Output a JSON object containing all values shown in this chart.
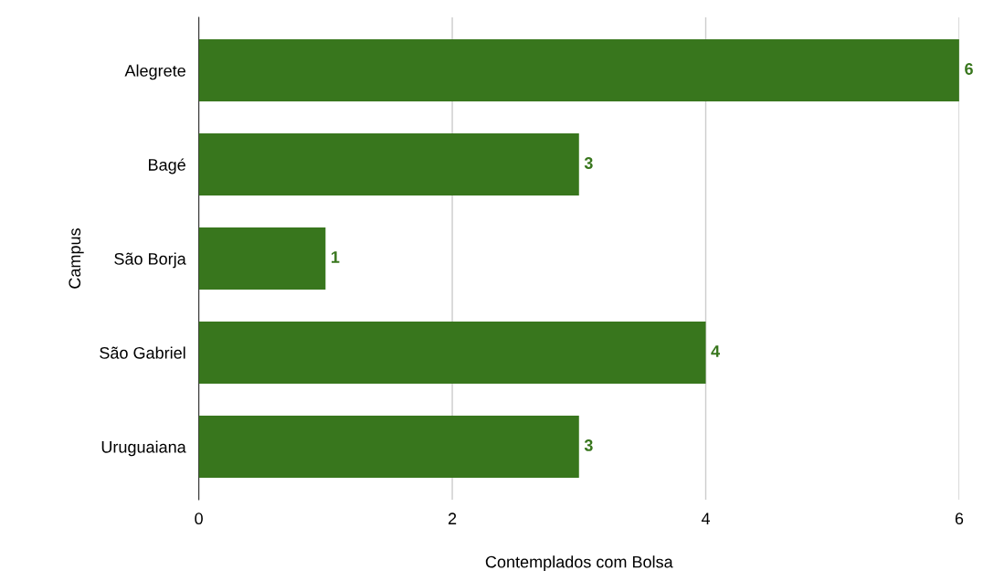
{
  "chart_data": {
    "type": "bar",
    "orientation": "horizontal",
    "categories": [
      "Alegrete",
      "Bagé",
      "São Borja",
      "São Gabriel",
      "Uruguaiana"
    ],
    "values": [
      6,
      3,
      1,
      4,
      3
    ],
    "color": "#38761d",
    "xlim": [
      0,
      6
    ],
    "xticks": [
      0,
      2,
      4,
      6
    ],
    "xlabel": "Contemplados com Bolsa",
    "ylabel": "Campus",
    "grid": "x",
    "data_labels": true
  }
}
